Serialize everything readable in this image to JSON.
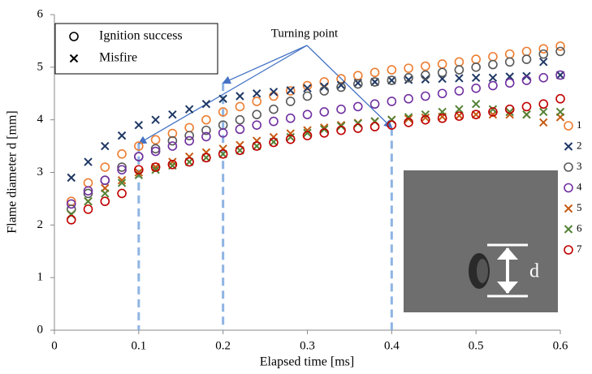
{
  "chart_data": {
    "type": "scatter",
    "xlabel": "Elapsed time [ms]",
    "ylabel": "Flame diameter d [mm]",
    "xlim": [
      0,
      0.6
    ],
    "xticks": [
      0,
      0.1,
      0.2,
      0.3,
      0.4,
      0.5,
      0.6
    ],
    "ylim": [
      0,
      6
    ],
    "yticks": [
      0,
      1,
      2,
      3,
      4,
      5,
      6
    ],
    "grid": false,
    "x": [
      0.02,
      0.04,
      0.06,
      0.08,
      0.1,
      0.12,
      0.14,
      0.16,
      0.18,
      0.2,
      0.22,
      0.24,
      0.26,
      0.28,
      0.3,
      0.32,
      0.34,
      0.36,
      0.38,
      0.4,
      0.42,
      0.44,
      0.46,
      0.48,
      0.5,
      0.52,
      0.54,
      0.56,
      0.58,
      0.6
    ],
    "series": [
      {
        "name": "1",
        "color": "#ed7d31",
        "marker": "circle",
        "values": [
          2.45,
          2.8,
          3.1,
          3.35,
          3.5,
          3.62,
          3.74,
          3.85,
          4.0,
          4.15,
          4.25,
          4.35,
          4.45,
          4.55,
          4.65,
          4.72,
          4.78,
          4.84,
          4.9,
          4.95,
          4.98,
          5.02,
          5.06,
          5.1,
          5.15,
          5.2,
          5.25,
          5.3,
          5.35,
          5.4
        ]
      },
      {
        "name": "2",
        "color": "#1f3864",
        "marker": "x",
        "values": [
          2.9,
          3.2,
          3.5,
          3.7,
          3.9,
          4.0,
          4.1,
          4.2,
          4.3,
          4.4,
          4.45,
          4.5,
          4.53,
          4.56,
          4.6,
          4.63,
          4.66,
          4.7,
          4.72,
          4.75,
          4.76,
          4.77,
          4.78,
          4.79,
          4.8,
          4.8,
          4.82,
          4.83,
          5.1,
          4.85
        ]
      },
      {
        "name": "3",
        "color": "#595959",
        "marker": "circle",
        "values": [
          2.3,
          2.6,
          2.85,
          3.1,
          3.3,
          3.45,
          3.6,
          3.7,
          3.8,
          3.9,
          4.0,
          4.1,
          4.2,
          4.35,
          4.45,
          4.55,
          4.62,
          4.68,
          4.72,
          4.75,
          4.8,
          4.85,
          4.9,
          4.95,
          5.0,
          5.05,
          5.1,
          5.15,
          5.25,
          5.3
        ]
      },
      {
        "name": "4",
        "color": "#7030a0",
        "marker": "circle",
        "values": [
          2.4,
          2.65,
          2.85,
          3.05,
          3.3,
          3.4,
          3.5,
          3.6,
          3.68,
          3.75,
          3.82,
          3.9,
          3.97,
          4.03,
          4.1,
          4.15,
          4.2,
          4.25,
          4.3,
          4.35,
          4.4,
          4.45,
          4.5,
          4.55,
          4.6,
          4.65,
          4.7,
          4.75,
          4.8,
          4.85
        ]
      },
      {
        "name": "5",
        "color": "#c55a11",
        "marker": "x",
        "values": [
          2.2,
          2.45,
          2.7,
          2.85,
          3.0,
          3.1,
          3.2,
          3.3,
          3.38,
          3.45,
          3.52,
          3.6,
          3.67,
          3.74,
          3.8,
          3.85,
          3.9,
          3.94,
          3.97,
          4.0,
          4.02,
          4.04,
          4.06,
          4.08,
          4.1,
          4.1,
          4.1,
          4.1,
          3.95,
          4.05
        ]
      },
      {
        "name": "6",
        "color": "#548235",
        "marker": "x",
        "values": [
          2.2,
          2.45,
          2.6,
          2.8,
          2.95,
          3.05,
          3.13,
          3.2,
          3.28,
          3.35,
          3.42,
          3.5,
          3.58,
          3.67,
          3.75,
          3.82,
          3.88,
          3.93,
          3.97,
          4.0,
          4.05,
          4.1,
          4.15,
          4.2,
          4.3,
          4.2,
          4.15,
          4.1,
          4.15,
          4.15
        ]
      },
      {
        "name": "7",
        "color": "#c00000",
        "marker": "circle",
        "values": [
          2.1,
          2.3,
          2.45,
          2.6,
          3.05,
          3.1,
          3.15,
          3.2,
          3.28,
          3.35,
          3.42,
          3.5,
          3.57,
          3.63,
          3.7,
          3.75,
          3.8,
          3.84,
          3.87,
          3.9,
          3.95,
          4.0,
          4.03,
          4.07,
          4.1,
          4.15,
          4.2,
          4.25,
          4.3,
          4.4
        ]
      }
    ],
    "marker_legend": [
      {
        "label": "Ignition success",
        "marker": "circle"
      },
      {
        "label": "Misfire",
        "marker": "x"
      }
    ],
    "annotation": "Turning point",
    "turning_points": [
      {
        "x": 0.1,
        "y": 3.55
      },
      {
        "x": 0.2,
        "y": 4.7
      },
      {
        "x": 0.4,
        "y": 3.85
      }
    ],
    "inset_label": "d"
  }
}
